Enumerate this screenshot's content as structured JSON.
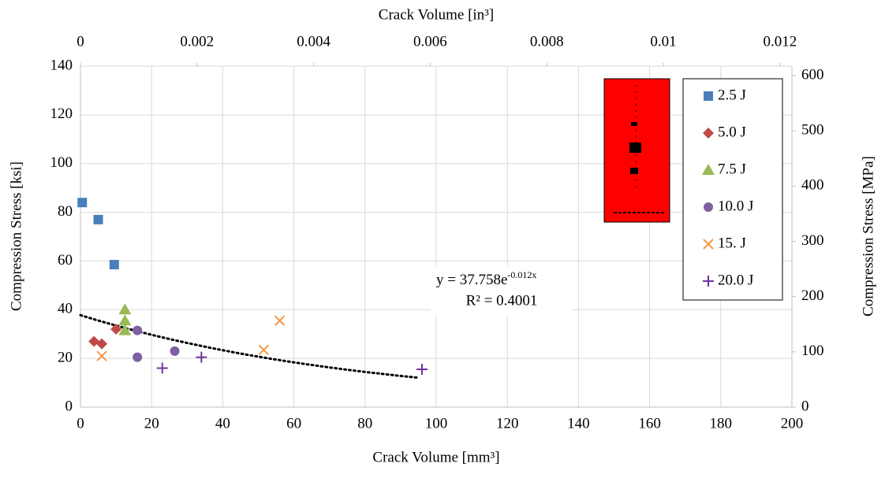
{
  "chart_data": {
    "type": "scatter",
    "x_label": "Crack Volume [mm³]",
    "x2_label": "Crack Volume [in³]",
    "y_label": "Compression Stress [ksi]",
    "y2_label": "Compression Stress [MPa]",
    "xlim": [
      0,
      200
    ],
    "xticks": [
      0,
      20,
      40,
      60,
      80,
      100,
      120,
      140,
      160,
      180,
      200
    ],
    "x2lim": [
      0,
      0.012205
    ],
    "x2ticks": [
      0,
      0.002,
      0.004,
      0.006,
      0.008,
      0.01,
      0.012
    ],
    "ylim": [
      0,
      140
    ],
    "yticks": [
      0,
      20,
      40,
      60,
      80,
      100,
      120,
      140
    ],
    "y2lim": [
      0,
      617
    ],
    "y2ticks": [
      0,
      100,
      200,
      300,
      400,
      500,
      600
    ],
    "grid": true,
    "legend": "right",
    "series": [
      {
        "name": "2.5 J",
        "color": "#4a7ebb",
        "marker": "square",
        "x": [
          0.5,
          5,
          9.5
        ],
        "values": [
          84,
          77,
          58.5
        ]
      },
      {
        "name": "5.0 J",
        "color": "#be4b48",
        "marker": "diamond",
        "x": [
          3.8,
          6,
          10
        ],
        "values": [
          27,
          26,
          32
        ]
      },
      {
        "name": "7.5 J",
        "color": "#98b954",
        "marker": "triangle",
        "x": [
          12.5,
          12.5,
          12.5
        ],
        "values": [
          40,
          35.5,
          31.5
        ]
      },
      {
        "name": "10.0 J",
        "color": "#7d60a0",
        "marker": "circle",
        "x": [
          16,
          16,
          26.5
        ],
        "values": [
          31.5,
          20.5,
          23
        ]
      },
      {
        "name": "15. J",
        "color": "#f79646",
        "marker": "cross",
        "x": [
          6,
          51.5,
          56
        ],
        "values": [
          21,
          23.5,
          35.5
        ]
      },
      {
        "name": "20.0 J",
        "color": "#7030a0",
        "marker": "plus",
        "x": [
          23,
          34,
          96
        ],
        "values": [
          16,
          20.5,
          15.5
        ]
      }
    ],
    "trendline": {
      "coefficient": 37.758,
      "rate": -0.012,
      "xrange": [
        0,
        95
      ],
      "color": "#000000",
      "equation": "y = 37.758e",
      "exponent": "-0.012x",
      "r_squared": "R² = 0.4001"
    }
  }
}
